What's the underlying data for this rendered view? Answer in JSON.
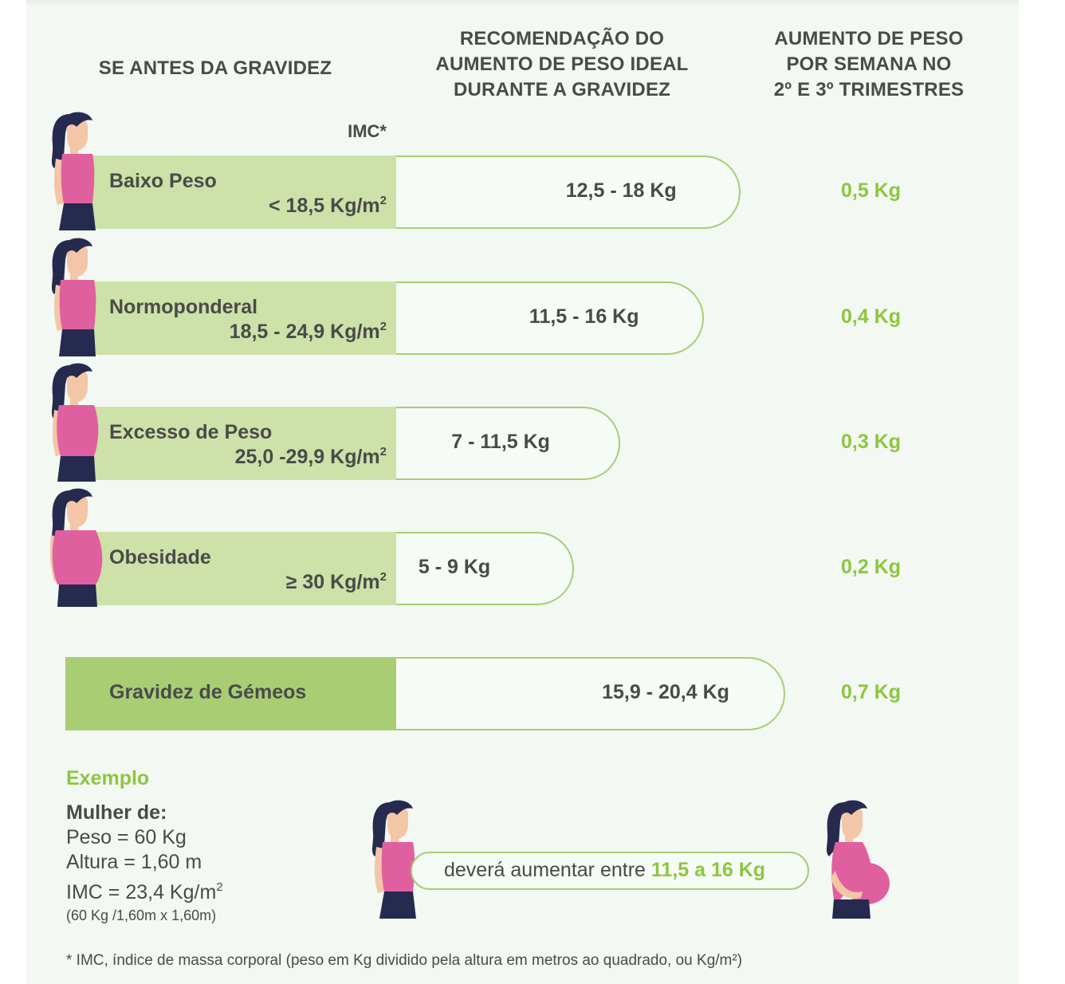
{
  "headers": {
    "col1": "SE ANTES DA GRAVIDEZ",
    "col2": [
      "RECOMENDAÇÃO DO",
      "AUMENTO DE PESO IDEAL",
      "DURANTE A GRAVIDEZ"
    ],
    "col3": [
      "AUMENTO DE PESO",
      "POR SEMANA NO",
      "2º E 3º TRIMESTRES"
    ],
    "imc_label": "IMC*"
  },
  "chart_data": {
    "type": "table",
    "rows": [
      {
        "category": "Baixo Peso",
        "imc": "< 18,5 Kg/m",
        "imc_sup": "2",
        "total_gain": "12,5 - 18 Kg",
        "total_gain_max_kg": 18,
        "weekly_gain": "0,5 Kg"
      },
      {
        "category": "Normoponderal",
        "imc": "18,5 - 24,9 Kg/m",
        "imc_sup": "2",
        "total_gain": "11,5 - 16 Kg",
        "total_gain_max_kg": 16,
        "weekly_gain": "0,4 Kg"
      },
      {
        "category": "Excesso de Peso",
        "imc": "25,0 -29,9 Kg/m",
        "imc_sup": "2",
        "total_gain": "7 - 11,5 Kg",
        "total_gain_max_kg": 11.5,
        "weekly_gain": "0,3 Kg"
      },
      {
        "category": "Obesidade",
        "imc": "≥ 30 Kg/m",
        "imc_sup": "2",
        "total_gain": "5 - 9 Kg",
        "total_gain_max_kg": 9,
        "weekly_gain": "0,2 Kg"
      }
    ],
    "twins": {
      "category": "Gravidez de Gémeos",
      "total_gain": "15,9 - 20,4 Kg",
      "total_gain_max_kg": 20.4,
      "weekly_gain": "0,7 Kg"
    }
  },
  "example": {
    "title": "Exemplo",
    "heading": "Mulher de:",
    "weight": "Peso = 60 Kg",
    "height": "Altura = 1,60 m",
    "imc": "IMC = 23,4 Kg/m",
    "imc_sup": "2",
    "calc": "(60 Kg /1,60m x 1,60m)",
    "result_text": "deverá aumentar entre ",
    "result_value": "11,5 a 16 Kg"
  },
  "footnote": "* IMC, índice de massa corporal (peso em Kg dividido pela altura em metros ao quadrado, ou Kg/m²)",
  "colors": {
    "green_light": "#cde1a8",
    "green_mid": "#a8cd73",
    "green_text": "#8cc63f",
    "pink": "#e0609f",
    "hair": "#262a4f",
    "skin": "#f2c6a7",
    "text": "#4a4a4a",
    "background": "#f3f8f2"
  }
}
